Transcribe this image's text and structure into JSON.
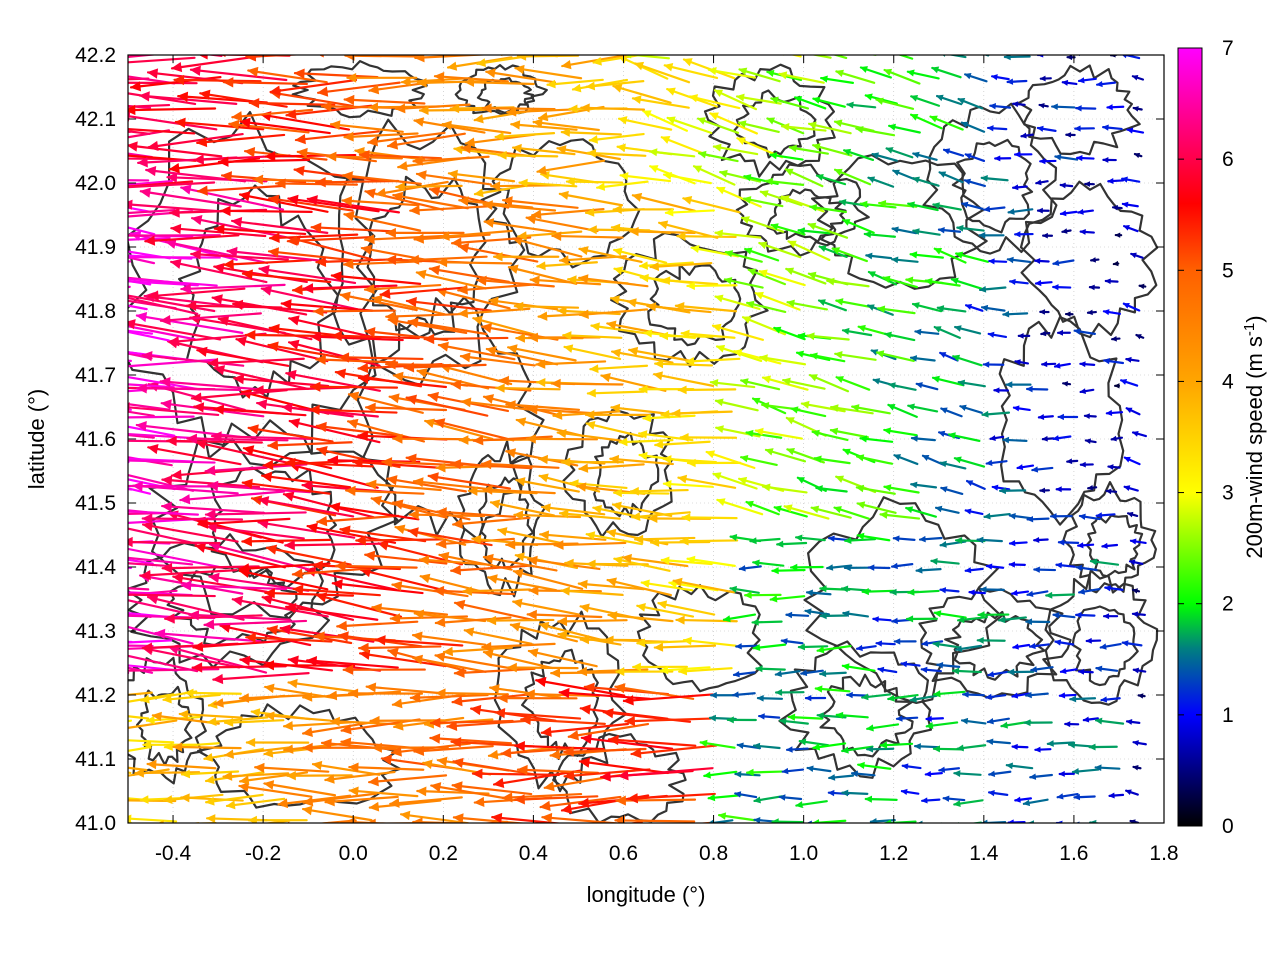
{
  "chart_data": {
    "type": "vector-field",
    "xlabel": "longitude (°)",
    "ylabel": "latitude (°)",
    "xlim": [
      -0.5,
      1.8
    ],
    "ylim": [
      41.0,
      42.2
    ],
    "x_ticks": [
      {
        "value": -0.4,
        "label": "-0.4"
      },
      {
        "value": -0.2,
        "label": "-0.2"
      },
      {
        "value": 0.0,
        "label": "0.0"
      },
      {
        "value": 0.2,
        "label": "0.2"
      },
      {
        "value": 0.4,
        "label": "0.4"
      },
      {
        "value": 0.6,
        "label": "0.6"
      },
      {
        "value": 0.8,
        "label": "0.8"
      },
      {
        "value": 1.0,
        "label": "1.0"
      },
      {
        "value": 1.2,
        "label": "1.2"
      },
      {
        "value": 1.4,
        "label": "1.4"
      },
      {
        "value": 1.6,
        "label": "1.6"
      },
      {
        "value": 1.8,
        "label": "1.8"
      }
    ],
    "y_ticks": [
      {
        "value": 41.0,
        "label": "41.0"
      },
      {
        "value": 41.1,
        "label": "41.1"
      },
      {
        "value": 41.2,
        "label": "41.2"
      },
      {
        "value": 41.3,
        "label": "41.3"
      },
      {
        "value": 41.4,
        "label": "41.4"
      },
      {
        "value": 41.5,
        "label": "41.5"
      },
      {
        "value": 41.6,
        "label": "41.6"
      },
      {
        "value": 41.7,
        "label": "41.7"
      },
      {
        "value": 41.8,
        "label": "41.8"
      },
      {
        "value": 41.9,
        "label": "41.9"
      },
      {
        "value": 42.0,
        "label": "42.0"
      },
      {
        "value": 42.1,
        "label": "42.1"
      },
      {
        "value": 42.2,
        "label": "42.2"
      }
    ],
    "grid": "dotted",
    "colorbar": {
      "label": "200m-wind speed (m s",
      "label_superscript": "-1",
      "label_suffix": ")",
      "range": [
        0,
        7
      ],
      "ticks": [
        {
          "value": 0,
          "label": "0"
        },
        {
          "value": 1,
          "label": "1"
        },
        {
          "value": 2,
          "label": "2"
        },
        {
          "value": 3,
          "label": "3"
        },
        {
          "value": 4,
          "label": "4"
        },
        {
          "value": 5,
          "label": "5"
        },
        {
          "value": 6,
          "label": "6"
        },
        {
          "value": 7,
          "label": "7"
        }
      ],
      "stops": [
        {
          "value": 0.0,
          "color": "#000000"
        },
        {
          "value": 1.0,
          "color": "#0000ff"
        },
        {
          "value": 1.6,
          "color": "#00807f"
        },
        {
          "value": 2.0,
          "color": "#00ff00"
        },
        {
          "value": 3.0,
          "color": "#ffff00"
        },
        {
          "value": 4.0,
          "color": "#ffa500"
        },
        {
          "value": 5.0,
          "color": "#ff6000"
        },
        {
          "value": 5.6,
          "color": "#ff0000"
        },
        {
          "value": 6.3,
          "color": "#ff0080"
        },
        {
          "value": 7.0,
          "color": "#ff00ff"
        }
      ]
    },
    "contour_color": "#333333",
    "vector_grid": {
      "lon_start": -0.5,
      "lon_end": 1.75,
      "lon_step": 0.05,
      "lat_start": 41.0,
      "lat_end": 42.2,
      "lat_step": 0.04
    },
    "wind_field_regions": [
      {
        "lat_range": [
          41.22,
          41.98
        ],
        "lon_range": [
          -0.5,
          0.9
        ],
        "speed_west": 7.0,
        "speed_east": 3.2,
        "direction_deg_from_east": 175
      },
      {
        "lat_range": [
          41.98,
          42.2
        ],
        "lon_range": [
          -0.5,
          0.65
        ],
        "speed_west": 6.5,
        "speed_east": 3.5,
        "direction_deg_from_east": 180
      },
      {
        "lat_range": [
          41.0,
          41.22
        ],
        "lon_range": [
          -0.5,
          0.85
        ],
        "speed_west": 3.5,
        "speed_east": 5.5,
        "direction_deg_from_east": 180
      },
      {
        "lat_range": [
          41.0,
          41.45
        ],
        "lon_range": [
          0.85,
          1.75
        ],
        "speed_west": 1.8,
        "speed_east": 1.2,
        "direction_deg_from_east": 180
      },
      {
        "lat_range": [
          41.45,
          42.2
        ],
        "lon_range": [
          1.45,
          1.75
        ],
        "speed_west": 1.2,
        "speed_east": 0.6,
        "direction_deg_from_east": 180
      }
    ]
  }
}
